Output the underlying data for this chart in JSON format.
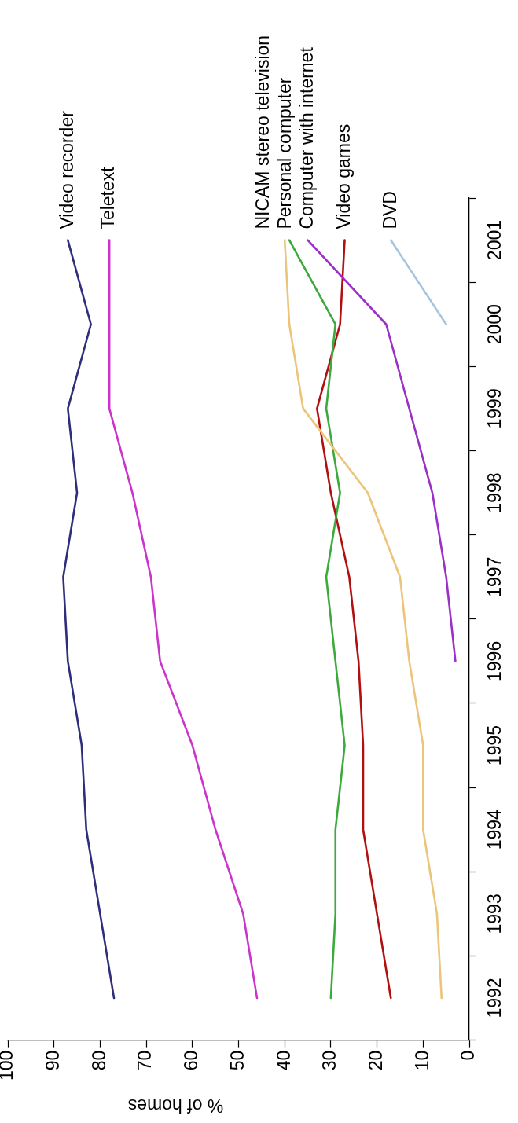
{
  "chart_data": {
    "type": "line",
    "xlabel": "% of homes",
    "xlim": [
      100,
      0
    ],
    "xticks": [
      100,
      90,
      80,
      70,
      60,
      50,
      40,
      30,
      20,
      10,
      0
    ],
    "ylim": [
      1991.5,
      2001.5
    ],
    "yticks": [
      {
        "value": 1991.5,
        "label": null
      },
      1992,
      {
        "value": 1992.5,
        "label": null
      },
      1993,
      {
        "value": 1993.5,
        "label": null
      },
      1994,
      {
        "value": 1994.5,
        "label": null
      },
      1995,
      {
        "value": 1995.5,
        "label": null
      },
      1996,
      {
        "value": 1996.5,
        "label": null
      },
      1997,
      {
        "value": 1997.5,
        "label": null
      },
      1998,
      {
        "value": 1998.5,
        "label": null
      },
      1999,
      {
        "value": 1999.5,
        "label": null
      },
      2000,
      {
        "value": 2000.5,
        "label": null
      },
      2001,
      {
        "value": 2001.5,
        "label": null
      }
    ],
    "legend": false,
    "marker": "none",
    "line_style": "solid",
    "series": [
      {
        "name": "Video recorder",
        "color": "#2e2e7a",
        "x": [
          77,
          80,
          83,
          84,
          87,
          88,
          85,
          87,
          82,
          87
        ],
        "values": [
          1992,
          1993,
          1994,
          1995,
          1996,
          1997,
          1998,
          1999,
          2000,
          2001
        ]
      },
      {
        "name": "Teletext",
        "color": "#cc33cc",
        "x": [
          46,
          49,
          55,
          60,
          67,
          69,
          73,
          78,
          78
        ],
        "values": [
          1992,
          1993,
          1994,
          1995,
          1996,
          1997,
          1998,
          1999,
          2001
        ]
      },
      {
        "name": "NICAM stereo television",
        "color": "#ecc47a",
        "x": [
          6,
          7,
          10,
          10,
          13,
          15,
          22,
          36,
          39,
          40
        ],
        "values": [
          1992,
          1993,
          1994,
          1995,
          1996,
          1997,
          1998,
          1999,
          2000,
          2001
        ]
      },
      {
        "name": "Personal computer",
        "color": "#3caa3c",
        "x": [
          30,
          29,
          29,
          27,
          29,
          31,
          28,
          31,
          29,
          39
        ],
        "values": [
          1992,
          1993,
          1994,
          1995,
          1996,
          1997,
          1998,
          1999,
          2000,
          2001
        ]
      },
      {
        "name": "Computer with internet",
        "color": "#9a30c8",
        "x": [
          3,
          5,
          8,
          13,
          18,
          35
        ],
        "values": [
          1996,
          1997,
          1998,
          1999,
          2000,
          2001
        ]
      },
      {
        "name": "Video games",
        "color": "#b01010",
        "x": [
          17,
          20,
          23,
          23,
          24,
          26,
          30,
          33,
          28,
          27
        ],
        "values": [
          1992,
          1993,
          1994,
          1995,
          1996,
          1997,
          1998,
          1999,
          2000,
          2001
        ]
      },
      {
        "name": "DVD",
        "color": "#a4c4e0",
        "x": [
          5,
          17
        ],
        "values": [
          2000,
          2001
        ]
      }
    ]
  }
}
